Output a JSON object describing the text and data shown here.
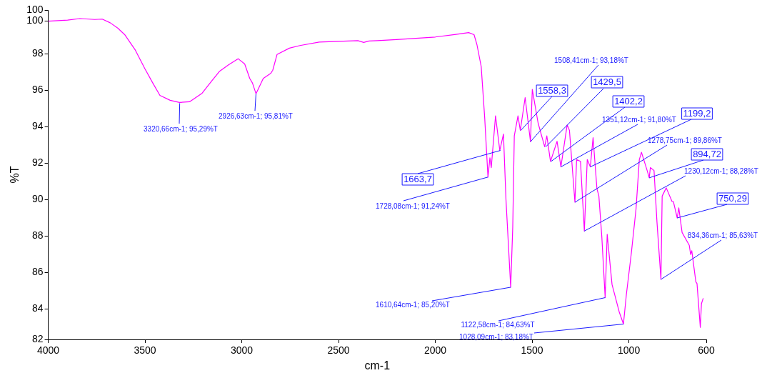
{
  "chart_data": {
    "type": "line",
    "xlabel": "cm-1",
    "ylabel": "%T",
    "xlim": [
      4000,
      600
    ],
    "xticks": [
      4000,
      3500,
      3000,
      2500,
      2000,
      1500,
      1000,
      600
    ],
    "ylim": [
      82.34,
      100.4
    ],
    "yticks": [
      {
        "value": 82.34,
        "label": "82"
      },
      84,
      86,
      88,
      90,
      92,
      94,
      96,
      98,
      {
        "value": 99.79,
        "label": "100"
      },
      {
        "value": 100.4,
        "label": "100"
      }
    ],
    "grid": false,
    "legend": false,
    "marker": "none",
    "line_style": "solid",
    "series": [
      {
        "color": "#ff00ff",
        "x": [
          4000,
          3900,
          3837,
          3760,
          3721,
          3680,
          3640,
          3605,
          3550,
          3501,
          3460,
          3423,
          3370,
          3322,
          3270,
          3205,
          3160,
          3116,
          3070,
          3019,
          2985,
          2959,
          2945,
          2926.63,
          2889,
          2851,
          2840,
          2818,
          2754,
          2700,
          2600,
          2500,
          2400,
          2370,
          2343,
          2300,
          2200,
          2100,
          2000,
          1900,
          1828,
          1800,
          1785,
          1763,
          1745,
          1728.08,
          1718,
          1711,
          1689,
          1667,
          1648,
          1635,
          1610.64,
          1600,
          1592,
          1573,
          1561,
          1536,
          1508.41,
          1499,
          1469,
          1435,
          1424,
          1405,
          1371,
          1351.12,
          1319,
          1307,
          1278.75,
          1270,
          1250,
          1230.12,
          1215,
          1199.2,
          1185,
          1165,
          1155,
          1140,
          1122.58,
          1112,
          1087,
          1050,
          1028.09,
          1013,
          987,
          963,
          946,
          935,
          907,
          894.72,
          889,
          870,
          855,
          834.36,
          828,
          807,
          777,
          770,
          750.29,
          742,
          725,
          688,
          681,
          675,
          654,
          648,
          631,
          625,
          616
        ],
        "values": [
          99.79,
          99.85,
          99.93,
          99.88,
          99.9,
          99.7,
          99.4,
          99.05,
          98.2,
          97.19,
          96.4,
          95.72,
          95.45,
          95.33,
          95.37,
          95.84,
          96.45,
          97.03,
          97.38,
          97.73,
          97.44,
          96.65,
          96.4,
          95.81,
          96.65,
          96.92,
          97.1,
          97.96,
          98.31,
          98.45,
          98.64,
          98.68,
          98.72,
          98.62,
          98.7,
          98.72,
          98.78,
          98.85,
          98.92,
          99.05,
          99.16,
          99.05,
          98.5,
          97.3,
          94.5,
          91.24,
          92.3,
          91.76,
          94.6,
          92.7,
          93.6,
          90.0,
          85.2,
          88.5,
          93.5,
          94.6,
          93.8,
          95.6,
          93.18,
          96.05,
          94.2,
          92.9,
          93.5,
          92.1,
          93.2,
          91.8,
          94.1,
          93.8,
          89.86,
          92.2,
          92.1,
          88.28,
          92.2,
          91.8,
          93.4,
          90.6,
          90.2,
          88.0,
          84.63,
          88.1,
          85.35,
          83.85,
          83.18,
          84.8,
          87.1,
          89.5,
          92.2,
          92.6,
          91.65,
          91.2,
          91.76,
          91.6,
          88.8,
          85.63,
          90.2,
          90.65,
          89.9,
          89.9,
          89.0,
          89.55,
          88.2,
          87.5,
          87.0,
          87.2,
          85.5,
          85.4,
          83.0,
          84.3,
          84.6
        ]
      }
    ],
    "annotations": [
      {
        "text": "3320,66cm-1; 95,29%T",
        "x": 3320.66,
        "y": 95.29
      },
      {
        "text": "2926,63cm-1; 95,81%T",
        "x": 2926.63,
        "y": 95.81
      },
      {
        "text": "1728,08cm-1; 91,24%T",
        "x": 1728.08,
        "y": 91.24
      },
      {
        "text": "1610,64cm-1; 85,20%T",
        "x": 1610.64,
        "y": 85.2
      },
      {
        "text": "1122,58cm-1; 84,63%T",
        "x": 1122.58,
        "y": 84.63
      },
      {
        "text": "1028,09cm-1; 83,18%T",
        "x": 1028.09,
        "y": 83.18
      },
      {
        "text": "1508,41cm-1; 93,18%T",
        "x": 1508.41,
        "y": 93.18
      },
      {
        "text": "1351,12cm-1; 91,80%T",
        "x": 1351.12,
        "y": 91.8
      },
      {
        "text": "1278,75cm-1; 89,86%T",
        "x": 1278.75,
        "y": 89.86
      },
      {
        "text": "1230,12cm-1; 88,28%T",
        "x": 1230.12,
        "y": 88.28
      },
      {
        "text": "834,36cm-1; 85,63%T",
        "x": 834.36,
        "y": 85.63
      },
      {
        "text": "1663,7",
        "x": 1663.7,
        "y": 92.7
      },
      {
        "text": "1558,3",
        "x": 1558.3,
        "y": 93.8
      },
      {
        "text": "1429,5",
        "x": 1429.5,
        "y": 92.9
      },
      {
        "text": "1402,2",
        "x": 1402.2,
        "y": 92.1
      },
      {
        "text": "1199,2",
        "x": 1199.2,
        "y": 91.8
      },
      {
        "text": "894,72",
        "x": 894.72,
        "y": 91.2
      },
      {
        "text": "750,29",
        "x": 750.29,
        "y": 89.0
      }
    ]
  }
}
